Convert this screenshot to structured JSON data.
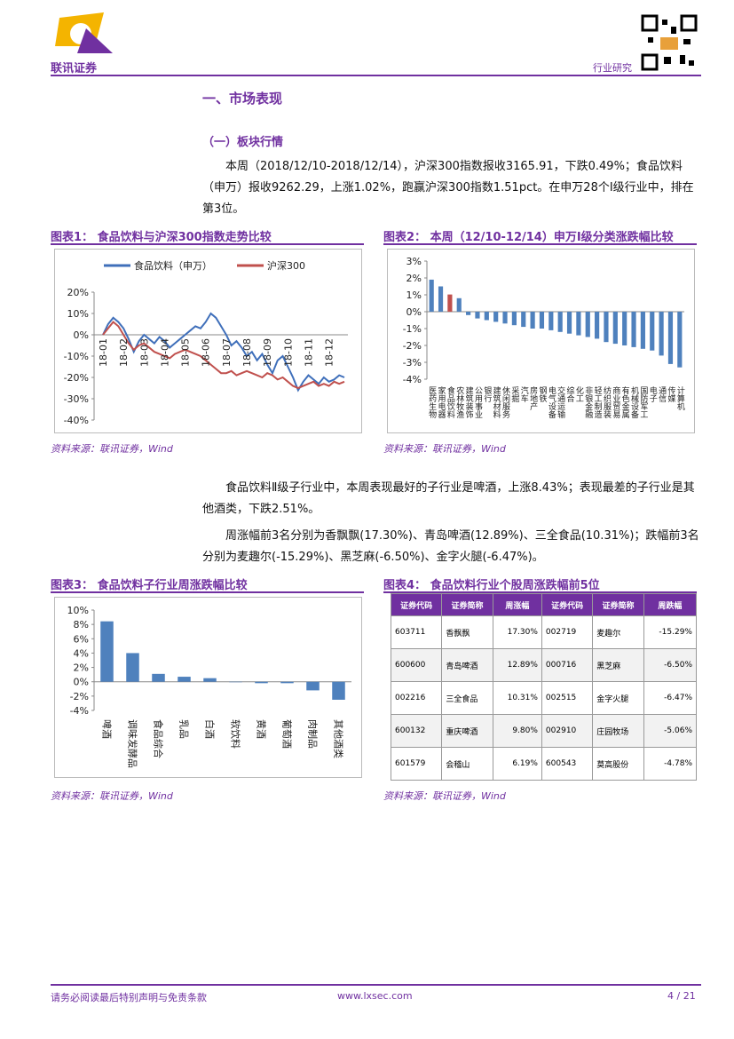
{
  "header": {
    "company": "联讯证券",
    "report_type": "行业研究"
  },
  "document": {
    "section_title": "一、市场表现",
    "subsection_title": "（一）板块行情",
    "paragraphs": [
      "本周（2018/12/10-2018/12/14），沪深300指数报收3165.91，下跌0.49%；食品饮料（申万）报收9262.29，上涨1.02%，跑赢沪深300指数1.51pct。在申万28个Ⅰ级行业中，排在第3位。",
      "食品饮料Ⅱ级子行业中，本周表现最好的子行业是啤酒，上涨8.43%；表现最差的子行业是其他酒类，下跌2.51%。",
      "周涨幅前3名分别为香飘飘(17.30%)、青岛啤酒(12.89%)、三全食品(10.31%)；跌幅前3名分别为麦趣尔(-15.29%)、黑芝麻(-6.50%)、金字火腿(-6.47%)。"
    ]
  },
  "chart_data": [
    {
      "type": "line",
      "figure_title": "图表1：  食品饮料与沪深300指数走势比较",
      "source": "资料来源：联讯证券，Wind",
      "categories": [
        "18-01",
        null,
        null,
        null,
        "18-02",
        null,
        null,
        null,
        "18-03",
        null,
        null,
        null,
        "18-04",
        null,
        null,
        null,
        "18-05",
        null,
        null,
        null,
        "18-06",
        null,
        null,
        null,
        "18-07",
        null,
        null,
        null,
        "18-08",
        null,
        null,
        null,
        "18-09",
        null,
        null,
        null,
        "18-10",
        null,
        null,
        null,
        "18-11",
        null,
        null,
        null,
        "18-12",
        null,
        null,
        null
      ],
      "series": [
        {
          "name": "食品饮料（申万）",
          "color": "#3f6fba",
          "values": [
            0,
            5,
            8,
            6,
            3,
            -2,
            -8,
            -3,
            0,
            -2,
            -4,
            -1,
            -3,
            -6,
            -4,
            -2,
            0,
            2,
            4,
            3,
            6,
            10,
            8,
            4,
            0,
            -5,
            -3,
            -6,
            -10,
            -8,
            -12,
            -9,
            -14,
            -18,
            -12,
            -10,
            -15,
            -20,
            -26,
            -22,
            -19,
            -21,
            -23,
            -20,
            -22,
            -21,
            -19,
            -20
          ]
        },
        {
          "name": "沪深300",
          "color": "#c0504d",
          "values": [
            0,
            3,
            6,
            4,
            0,
            -4,
            -7,
            -5,
            -4,
            -6,
            -8,
            -9,
            -10,
            -11,
            -9,
            -8,
            -7,
            -8,
            -9,
            -10,
            -12,
            -14,
            -16,
            -18,
            -18,
            -17,
            -19,
            -18,
            -17,
            -18,
            -19,
            -20,
            -18,
            -19,
            -21,
            -20,
            -22,
            -24,
            -25,
            -24,
            -23,
            -22,
            -24,
            -23,
            -24,
            -22,
            -23,
            -22
          ]
        }
      ],
      "ylim": [
        -40,
        20
      ],
      "yticks": [
        {
          "value": -40,
          "label": "-40%"
        },
        {
          "value": -30,
          "label": "-30%"
        },
        {
          "value": -20,
          "label": "-20%"
        },
        {
          "value": -10,
          "label": "-10%"
        },
        {
          "value": 0,
          "label": "0%"
        },
        {
          "value": 10,
          "label": "10%"
        },
        {
          "value": 20,
          "label": "20%"
        }
      ]
    },
    {
      "type": "bar",
      "figure_title": "图表2：  本周（12/10-12/14）申万Ⅰ级分类涨跌幅比较",
      "source": "资料来源：联讯证券，Wind",
      "categories": [
        "医药生物",
        "家用电器",
        "食品饮料",
        "农林牧渔",
        "建筑装饰",
        "公用事业",
        "银行",
        "建筑材料",
        "休闲服务",
        "采掘",
        "汽车",
        "房地产",
        "钢铁",
        "电气设备",
        "交通运输",
        "综合",
        "化工",
        "非银金融",
        "轻工制造",
        "纺织服装",
        "商业贸易",
        "有色金属",
        "机械设备",
        "国防军工",
        "电子",
        "通信",
        "传媒",
        "计算机"
      ],
      "values": [
        1.9,
        1.5,
        1.02,
        0.8,
        -0.2,
        -0.4,
        -0.5,
        -0.6,
        -0.7,
        -0.8,
        -0.9,
        -1.0,
        -1.0,
        -1.1,
        -1.2,
        -1.3,
        -1.4,
        -1.5,
        -1.6,
        -1.8,
        -1.9,
        -2.0,
        -2.1,
        -2.2,
        -2.3,
        -2.6,
        -3.1,
        -3.3
      ],
      "colors": [
        "#4f81bd",
        "#4f81bd",
        "#c0504d",
        "#4f81bd",
        "#4f81bd",
        "#4f81bd",
        "#4f81bd",
        "#4f81bd",
        "#4f81bd",
        "#4f81bd",
        "#4f81bd",
        "#4f81bd",
        "#4f81bd",
        "#4f81bd",
        "#4f81bd",
        "#4f81bd",
        "#4f81bd",
        "#4f81bd",
        "#4f81bd",
        "#4f81bd",
        "#4f81bd",
        "#4f81bd",
        "#4f81bd",
        "#4f81bd",
        "#4f81bd",
        "#4f81bd",
        "#4f81bd",
        "#4f81bd"
      ],
      "ylim": [
        -4,
        3
      ],
      "yticks": [
        {
          "value": -4,
          "label": "-4%"
        },
        {
          "value": -3,
          "label": "-3%"
        },
        {
          "value": -2,
          "label": "-2%"
        },
        {
          "value": -1,
          "label": "-1%"
        },
        {
          "value": 0,
          "label": "0%"
        },
        {
          "value": 1,
          "label": "1%"
        },
        {
          "value": 2,
          "label": "2%"
        },
        {
          "value": 3,
          "label": "3%"
        }
      ]
    },
    {
      "type": "bar",
      "figure_title": "图表3：  食品饮料子行业周涨跌幅比较",
      "source": "资料来源：联讯证券，Wind",
      "categories": [
        "啤酒",
        "调味发酵品",
        "食品综合",
        "乳品",
        "白酒",
        "软饮料",
        "黄酒",
        "葡萄酒",
        "肉制品",
        "其他酒类"
      ],
      "values": [
        8.43,
        4.0,
        1.1,
        0.7,
        0.5,
        0.0,
        -0.2,
        -0.2,
        -1.2,
        -2.51
      ],
      "colors": [
        "#4f81bd",
        "#4f81bd",
        "#4f81bd",
        "#4f81bd",
        "#4f81bd",
        "#4f81bd",
        "#4f81bd",
        "#4f81bd",
        "#4f81bd",
        "#4f81bd"
      ],
      "ylim": [
        -4,
        10
      ],
      "yticks": [
        {
          "value": -4,
          "label": "-4%"
        },
        {
          "value": -2,
          "label": "-2%"
        },
        {
          "value": 0,
          "label": "0%"
        },
        {
          "value": 2,
          "label": "2%"
        },
        {
          "value": 4,
          "label": "4%"
        },
        {
          "value": 6,
          "label": "6%"
        },
        {
          "value": 8,
          "label": "8%"
        },
        {
          "value": 10,
          "label": "10%"
        }
      ]
    }
  ],
  "table": {
    "title": "图表4：  食品饮料行业个股周涨跌幅前5位",
    "source": "资料来源：联讯证券，Wind",
    "header": [
      "证券代码",
      "证券简称",
      "周涨幅",
      "证券代码",
      "证券简称",
      "周跌幅"
    ],
    "rows": [
      [
        "603711",
        "香飘飘",
        "17.30%",
        "002719",
        "麦趣尔",
        "-15.29%"
      ],
      [
        "600600",
        "青岛啤酒",
        "12.89%",
        "000716",
        "黑芝麻",
        "-6.50%"
      ],
      [
        "002216",
        "三全食品",
        "10.31%",
        "002515",
        "金字火腿",
        "-6.47%"
      ],
      [
        "600132",
        "重庆啤酒",
        "9.80%",
        "002910",
        "庄园牧场",
        "-5.06%"
      ],
      [
        "601579",
        "会稽山",
        "6.19%",
        "600543",
        "莫高股份",
        "-4.78%"
      ]
    ]
  },
  "footer": {
    "disclaimer": "请务必阅读最后特别声明与免责条款",
    "website": "www.lxsec.com",
    "page": "4 / 21"
  }
}
